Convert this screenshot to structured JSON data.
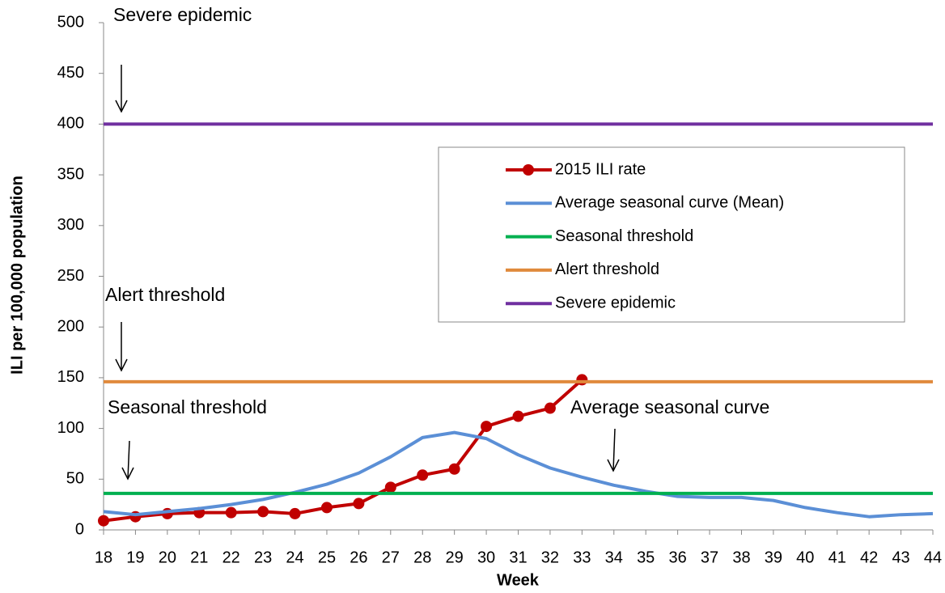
{
  "chart_data": {
    "type": "line",
    "y_label": "ILI per 100,000 population",
    "x_label": "Week",
    "x": [
      18,
      19,
      20,
      21,
      22,
      23,
      24,
      25,
      26,
      27,
      28,
      29,
      30,
      31,
      32,
      33,
      34,
      35,
      36,
      37,
      38,
      39,
      40,
      41,
      42,
      43,
      44
    ],
    "xlim": [
      18,
      44
    ],
    "xticks": [
      18,
      19,
      20,
      21,
      22,
      23,
      24,
      25,
      26,
      27,
      28,
      29,
      30,
      31,
      32,
      33,
      34,
      35,
      36,
      37,
      38,
      39,
      40,
      41,
      42,
      43,
      44
    ],
    "ylim": [
      0,
      500
    ],
    "yticks": [
      0,
      50,
      100,
      150,
      200,
      250,
      300,
      350,
      400,
      450,
      500
    ],
    "series": [
      {
        "name": "2015 ILI rate",
        "color": "#c00000",
        "markers": true,
        "values": [
          9,
          13,
          16,
          17,
          17,
          18,
          16,
          22,
          26,
          42,
          54,
          60,
          102,
          112,
          120,
          148,
          null,
          null,
          null,
          null,
          null,
          null,
          null,
          null,
          null,
          null,
          null
        ]
      },
      {
        "name": "Average seasonal curve (Mean)",
        "color": "#5b8fd6",
        "values": [
          18,
          15,
          18,
          21,
          25,
          30,
          37,
          45,
          56,
          72,
          91,
          96,
          90,
          74,
          61,
          52,
          44,
          38,
          33,
          32,
          32,
          29,
          22,
          17,
          13,
          15,
          16
        ]
      },
      {
        "name": "Seasonal threshold",
        "color": "#00b050",
        "value": 36
      },
      {
        "name": "Alert threshold",
        "color": "#e08a3c",
        "value": 146
      },
      {
        "name": "Severe epidemic",
        "color": "#7030a0",
        "value": 400
      }
    ],
    "annotations": [
      "Severe epidemic",
      "Alert threshold",
      "Seasonal threshold",
      "Average seasonal curve"
    ],
    "legend": "inside-right"
  }
}
